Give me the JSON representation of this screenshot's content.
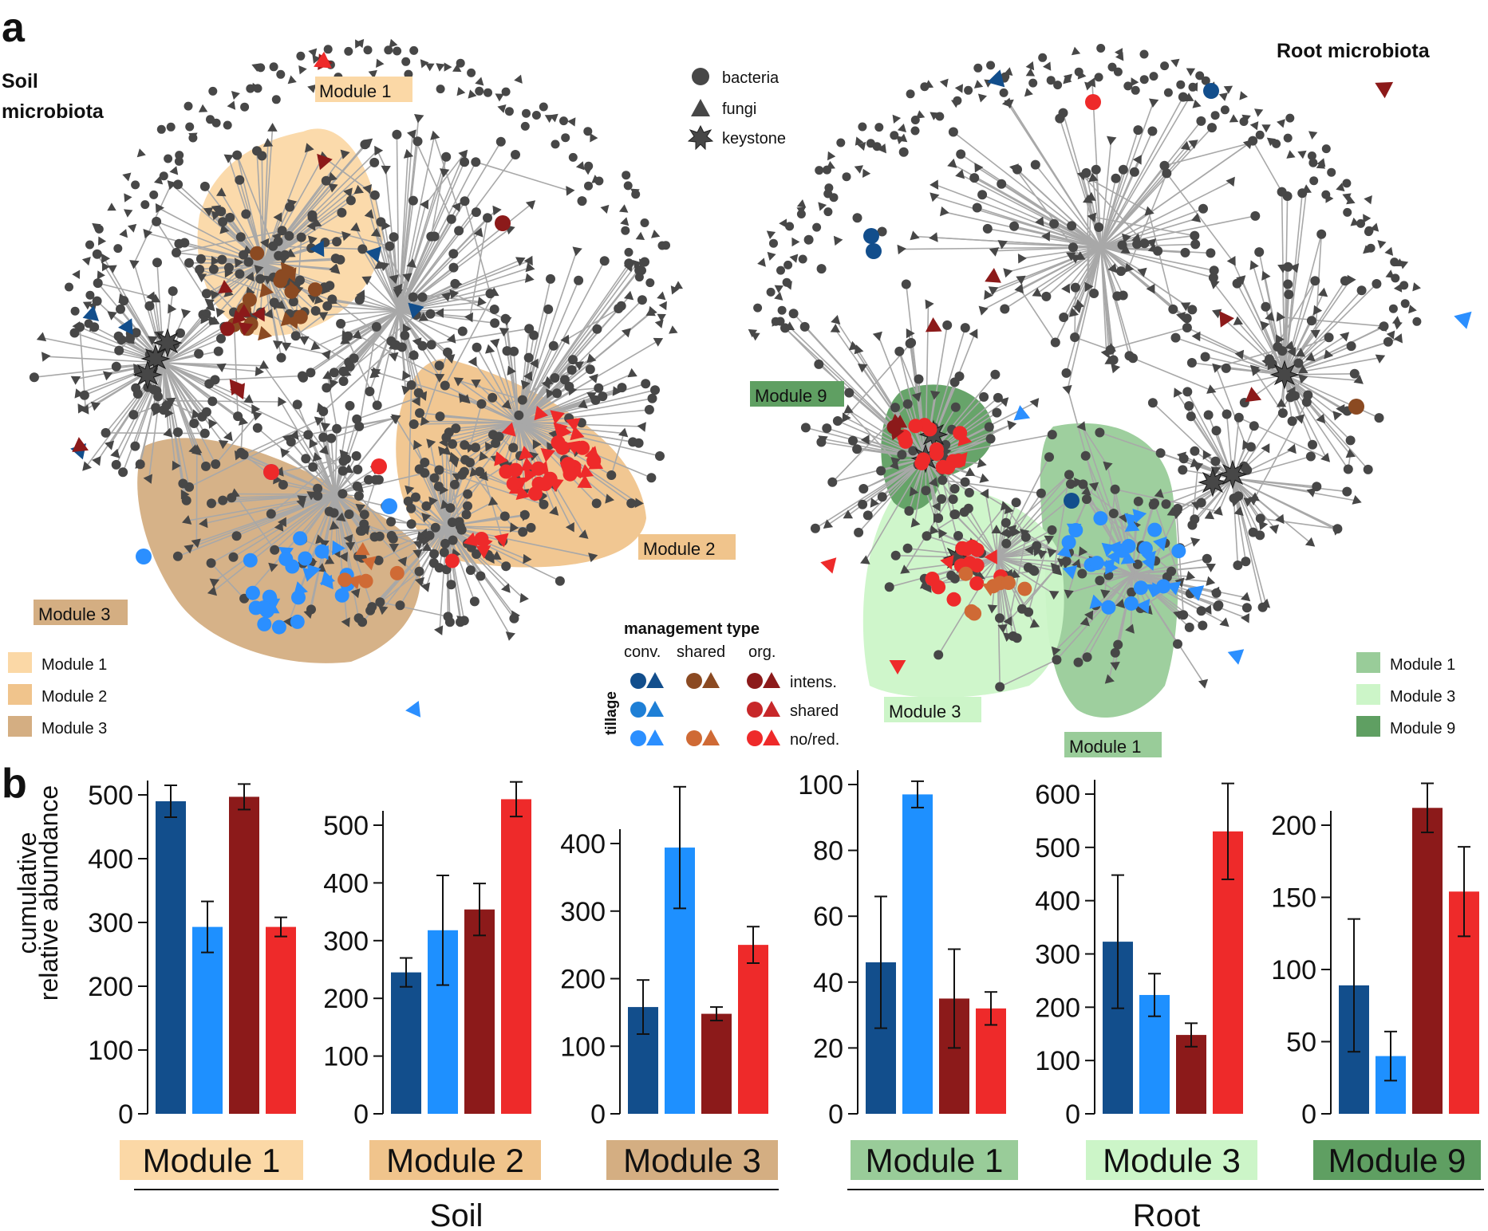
{
  "panel_a": {
    "label": "a",
    "soil_title_1": "Soil",
    "soil_title_2": "microbiota",
    "root_title": "Root microbiota",
    "node_legend": {
      "bacteria": "bacteria",
      "fungi": "fungi",
      "keystone": "keystone"
    },
    "soil_module_labels": {
      "m1": "Module 1",
      "m2": "Module 2",
      "m3": "Module 3"
    },
    "root_module_labels": {
      "m9": "Module 9",
      "m3": "Module 3",
      "m1": "Module 1"
    },
    "soil_legend": [
      {
        "label": "Module 1",
        "color": "#fbd8a6"
      },
      {
        "label": "Module 2",
        "color": "#f0c48c"
      },
      {
        "label": "Module 3",
        "color": "#d4ae82"
      }
    ],
    "root_legend": [
      {
        "label": "Module 1",
        "color": "#99cc99"
      },
      {
        "label": "Module 3",
        "color": "#ccf5c8"
      },
      {
        "label": "Module 9",
        "color": "#5f9f62"
      }
    ],
    "management_legend": {
      "title": "management type",
      "conv": "conv.",
      "shared": "shared",
      "org": "org.",
      "tillage": "tillage",
      "intens": "intens.",
      "shared_row": "shared",
      "no_red": "no/red."
    },
    "colors": {
      "conv_intens": "#124e8c",
      "conv_shared": "#1e7fd6",
      "conv_nored": "#2b8fff",
      "shared_intens": "#8b4a22",
      "shared_nored": "#cf6a35",
      "org_intens": "#8c1a1a",
      "org_shared": "#c7282a",
      "org_nored": "#ee2a2a",
      "node": "#474747",
      "edge": "#a8a8a8"
    }
  },
  "panel_b": {
    "label": "b",
    "ylabel_1": "cumulative",
    "ylabel_2": "relative abundance",
    "group_soil": "Soil",
    "group_root": "Root"
  },
  "chart_data": [
    {
      "type": "bar",
      "group": "Soil",
      "title": "Module 1",
      "title_bg": "#fbd8a6",
      "categories": [
        "conv. intens.",
        "conv. no/red.",
        "org. intens.",
        "org. no/red."
      ],
      "values": [
        490,
        293,
        497,
        293
      ],
      "errors": [
        25,
        40,
        20,
        15
      ],
      "ylim": [
        0,
        500
      ],
      "yticks": [
        0,
        100,
        200,
        300,
        400,
        500
      ],
      "colors": [
        "#124e8c",
        "#1e90ff",
        "#8c1a1a",
        "#ee2a2a"
      ]
    },
    {
      "type": "bar",
      "group": "Soil",
      "title": "Module 2",
      "title_bg": "#f0c48c",
      "categories": [
        "conv. intens.",
        "conv. no/red.",
        "org. intens.",
        "org. no/red."
      ],
      "values": [
        245,
        318,
        354,
        545
      ],
      "errors": [
        25,
        95,
        45,
        30
      ],
      "ylim": [
        0,
        500
      ],
      "yticks": [
        0,
        100,
        200,
        300,
        400,
        500
      ],
      "colors": [
        "#124e8c",
        "#1e90ff",
        "#8c1a1a",
        "#ee2a2a"
      ]
    },
    {
      "type": "bar",
      "group": "Soil",
      "title": "Module 3",
      "title_bg": "#d4ae82",
      "categories": [
        "conv. intens.",
        "conv. no/red.",
        "org. intens.",
        "org. no/red."
      ],
      "values": [
        158,
        394,
        148,
        250
      ],
      "errors": [
        40,
        90,
        10,
        27
      ],
      "ylim": [
        0,
        400
      ],
      "yticks": [
        0,
        100,
        200,
        300,
        400
      ],
      "colors": [
        "#124e8c",
        "#1e90ff",
        "#8c1a1a",
        "#ee2a2a"
      ]
    },
    {
      "type": "bar",
      "group": "Root",
      "title": "Module 1",
      "title_bg": "#99cc99",
      "categories": [
        "conv. intens.",
        "conv. no/red.",
        "org. intens.",
        "org. no/red."
      ],
      "values": [
        46,
        97,
        35,
        32
      ],
      "errors": [
        20,
        4,
        15,
        5
      ],
      "ylim": [
        0,
        100
      ],
      "yticks": [
        0,
        20,
        40,
        60,
        80,
        100
      ],
      "colors": [
        "#124e8c",
        "#1e90ff",
        "#8c1a1a",
        "#ee2a2a"
      ]
    },
    {
      "type": "bar",
      "group": "Root",
      "title": "Module 3",
      "title_bg": "#ccf5c8",
      "categories": [
        "conv. intens.",
        "conv. no/red.",
        "org. intens.",
        "org. no/red."
      ],
      "values": [
        323,
        223,
        148,
        530
      ],
      "errors": [
        125,
        40,
        22,
        90
      ],
      "ylim": [
        0,
        600
      ],
      "yticks": [
        0,
        100,
        200,
        300,
        400,
        500,
        600
      ],
      "colors": [
        "#124e8c",
        "#1e90ff",
        "#8c1a1a",
        "#ee2a2a"
      ]
    },
    {
      "type": "bar",
      "group": "Root",
      "title": "Module 9",
      "title_bg": "#5f9f62",
      "categories": [
        "conv. intens.",
        "conv. no/red.",
        "org. intens.",
        "org. no/red."
      ],
      "values": [
        89,
        40,
        212,
        154
      ],
      "errors": [
        46,
        17,
        17,
        31
      ],
      "ylim": [
        0,
        200
      ],
      "yticks": [
        0,
        50,
        100,
        150,
        200
      ],
      "colors": [
        "#124e8c",
        "#1e90ff",
        "#8c1a1a",
        "#ee2a2a"
      ]
    }
  ]
}
